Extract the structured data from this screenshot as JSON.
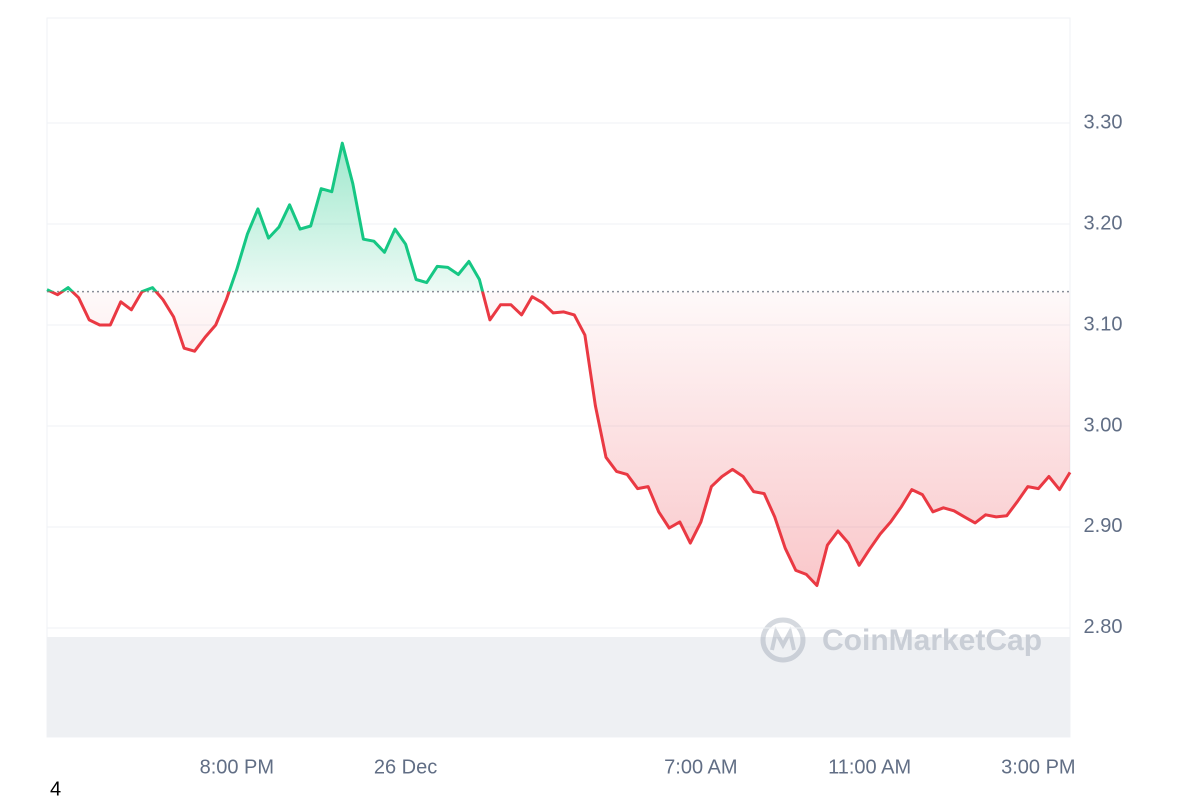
{
  "chart_data": {
    "type": "line",
    "watermark": "CoinMarketCap",
    "footnote": "4",
    "categories": [
      null,
      null,
      null,
      null,
      null,
      null,
      null,
      null,
      null,
      null,
      null,
      null,
      null,
      null,
      null,
      null,
      null,
      null,
      "8:00 PM",
      null,
      null,
      null,
      null,
      null,
      null,
      null,
      null,
      null,
      null,
      null,
      null,
      null,
      null,
      null,
      "26 Dec",
      null,
      null,
      null,
      null,
      null,
      null,
      null,
      null,
      null,
      null,
      null,
      null,
      null,
      null,
      null,
      null,
      null,
      null,
      null,
      null,
      null,
      null,
      null,
      null,
      null,
      null,
      null,
      "7:00 AM",
      null,
      null,
      null,
      null,
      null,
      null,
      null,
      null,
      null,
      null,
      null,
      null,
      null,
      null,
      null,
      "11:00 AM",
      null,
      null,
      null,
      null,
      null,
      null,
      null,
      null,
      null,
      null,
      null,
      null,
      null,
      null,
      null,
      "3:00 PM",
      null,
      null,
      null
    ],
    "values": [
      3.135,
      3.13,
      3.137,
      3.127,
      3.105,
      3.1,
      3.1,
      3.123,
      3.115,
      3.133,
      3.137,
      3.125,
      3.108,
      3.077,
      3.074,
      3.088,
      3.1,
      3.125,
      3.155,
      3.19,
      3.215,
      3.186,
      3.197,
      3.219,
      3.195,
      3.198,
      3.235,
      3.232,
      3.28,
      3.24,
      3.185,
      3.183,
      3.172,
      3.195,
      3.18,
      3.145,
      3.142,
      3.158,
      3.157,
      3.15,
      3.163,
      3.145,
      3.105,
      3.12,
      3.12,
      3.11,
      3.128,
      3.122,
      3.112,
      3.113,
      3.11,
      3.09,
      3.02,
      2.969,
      2.955,
      2.952,
      2.938,
      2.94,
      2.915,
      2.899,
      2.905,
      2.884,
      2.905,
      2.94,
      2.95,
      2.957,
      2.95,
      2.935,
      2.933,
      2.91,
      2.879,
      2.857,
      2.853,
      2.842,
      2.882,
      2.896,
      2.884,
      2.862,
      2.878,
      2.893,
      2.905,
      2.92,
      2.937,
      2.932,
      2.915,
      2.919,
      2.916,
      2.91,
      2.904,
      2.912,
      2.91,
      2.911,
      2.925,
      2.94,
      2.938,
      2.95,
      2.937,
      2.954
    ],
    "reference": 3.133,
    "up_color": "#16c784",
    "down_color": "#ea3943",
    "ylim": [
      2.692,
      3.404
    ],
    "yticks": [
      {
        "value": 2.8,
        "label": "2.80"
      },
      {
        "value": 2.9,
        "label": "2.90"
      },
      {
        "value": 3.0,
        "label": "3.00"
      },
      {
        "value": 3.1,
        "label": "3.10"
      },
      {
        "value": 3.2,
        "label": "3.20"
      },
      {
        "value": 3.3,
        "label": "3.30"
      }
    ],
    "grid": true
  }
}
